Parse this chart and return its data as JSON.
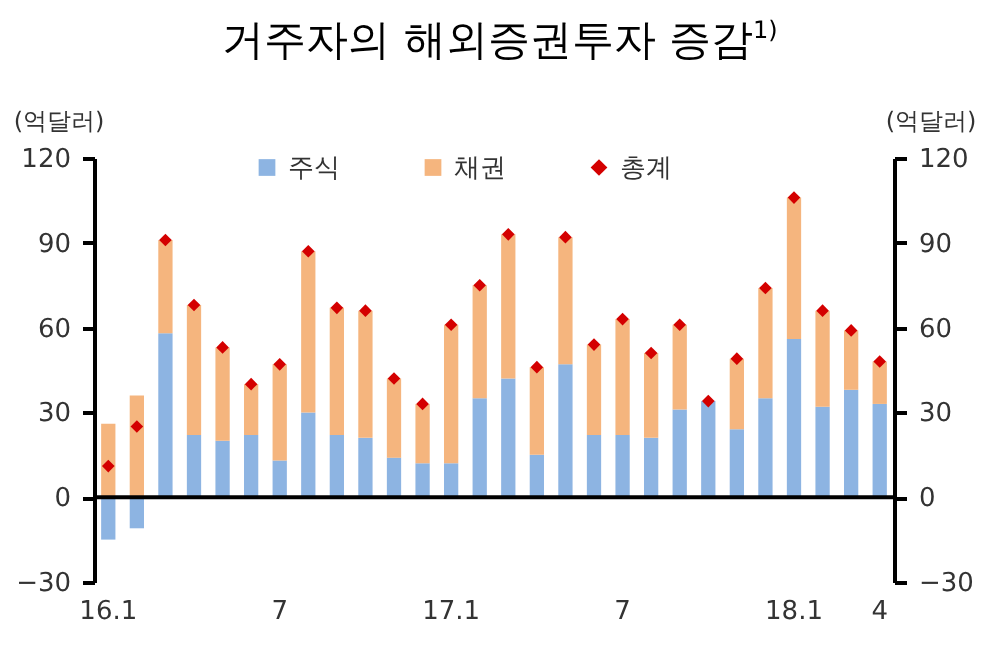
{
  "chart_data": {
    "type": "bar",
    "title": "거주자의 해외증권투자 증감$^{1)}$",
    "ylabel": "(억달러)",
    "y2label": "(억달러)",
    "categories": [
      "16.1",
      null,
      null,
      null,
      null,
      null,
      "7",
      null,
      null,
      null,
      null,
      null,
      "17.1",
      null,
      null,
      null,
      null,
      null,
      "7",
      null,
      null,
      null,
      null,
      null,
      "18.1",
      null,
      null,
      "4"
    ],
    "stacked": true,
    "series": [
      {
        "name": "주식",
        "color": "#8db4e2",
        "values": [
          -15,
          -11,
          58,
          22,
          20,
          22,
          13,
          30,
          22,
          21,
          14,
          12,
          12,
          35,
          42,
          15,
          47,
          22,
          22,
          21,
          31,
          34,
          24,
          35,
          56,
          32,
          38,
          33
        ]
      },
      {
        "name": "채권",
        "color": "#f5b57e",
        "values": [
          26,
          36,
          33,
          46,
          33,
          18,
          34,
          57,
          45,
          45,
          28,
          21,
          49,
          40,
          51,
          31,
          45,
          32,
          41,
          30,
          30,
          0,
          25,
          39,
          50,
          34,
          21,
          15
        ]
      },
      {
        "name": "총계",
        "type": "scatter",
        "color": "#d40000",
        "values": [
          11,
          25,
          91,
          68,
          53,
          40,
          47,
          87,
          67,
          66,
          42,
          33,
          61,
          75,
          93,
          46,
          92,
          54,
          63,
          51,
          61,
          34,
          49,
          74,
          106,
          66,
          59,
          48
        ]
      }
    ],
    "ylim": [
      -30,
      120
    ],
    "yticks": [
      -30,
      0,
      30,
      60,
      90,
      120
    ],
    "y2lim": [
      -30,
      120
    ],
    "y2ticks": [
      -30,
      0,
      30,
      60,
      90,
      120
    ],
    "legend": "top",
    "marker": "diamond",
    "ref_lines": [
      {
        "axis": "y",
        "value": 0,
        "color": "#000000"
      }
    ]
  }
}
